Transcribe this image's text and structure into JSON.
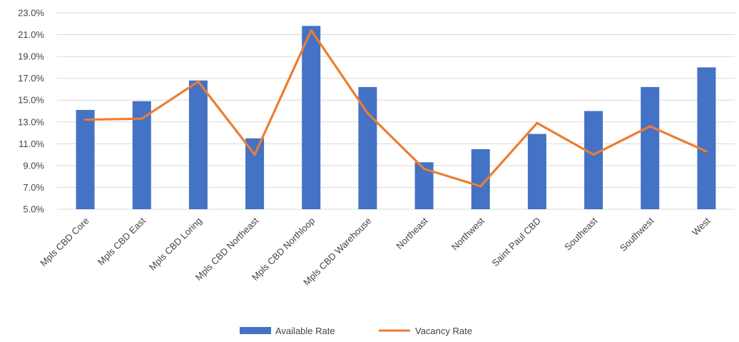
{
  "chart_data": {
    "type": "bar",
    "categories": [
      "Mpls CBD Core",
      "Mpls CBD East",
      "Mpls CBD Loring",
      "Mpls CBD Northeast",
      "Mpls CBD Northloop",
      "Mpls CBD Warehouse",
      "Northeast",
      "Northwest",
      "Saint Paul CBD",
      "Southeast",
      "Southwest",
      "West"
    ],
    "series": [
      {
        "name": "Available Rate",
        "type": "bar",
        "color": "#4472c4",
        "values": [
          14.1,
          14.9,
          16.8,
          11.5,
          21.8,
          16.2,
          9.3,
          10.5,
          11.9,
          14.0,
          16.2,
          18.0
        ]
      },
      {
        "name": "Vacancy Rate",
        "type": "line",
        "color": "#ed7d31",
        "values": [
          13.2,
          13.3,
          16.7,
          10.0,
          21.4,
          13.8,
          8.7,
          7.1,
          12.9,
          10.0,
          12.6,
          10.3
        ]
      }
    ],
    "y_ticks": [
      "5.0%",
      "7.0%",
      "9.0%",
      "11.0%",
      "13.0%",
      "15.0%",
      "17.0%",
      "19.0%",
      "21.0%",
      "23.0%"
    ],
    "ylim": [
      5,
      23
    ],
    "grid": true,
    "legend_position": "bottom"
  }
}
